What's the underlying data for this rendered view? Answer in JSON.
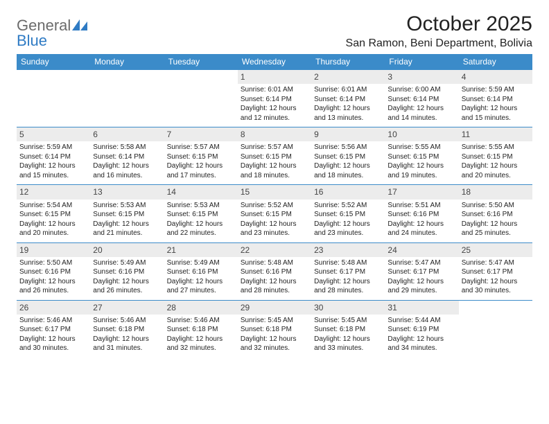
{
  "logo": {
    "text1": "General",
    "text2": "Blue",
    "color_gray": "#6b6b6b",
    "color_blue": "#2f7bc4"
  },
  "title": "October 2025",
  "location": "San Ramon, Beni Department, Bolivia",
  "colors": {
    "header_bg": "#3b8bc9",
    "header_text": "#ffffff",
    "week_border": "#3b8bc9",
    "daynum_bg": "#ececec",
    "page_bg": "#ffffff"
  },
  "fonts": {
    "title_size": 30,
    "location_size": 16,
    "header_size": 12,
    "daynum_size": 12,
    "detail_size": 10
  },
  "day_names": [
    "Sunday",
    "Monday",
    "Tuesday",
    "Wednesday",
    "Thursday",
    "Friday",
    "Saturday"
  ],
  "weeks": [
    [
      {
        "n": "",
        "sr": "",
        "ss": "",
        "dl": ""
      },
      {
        "n": "",
        "sr": "",
        "ss": "",
        "dl": ""
      },
      {
        "n": "",
        "sr": "",
        "ss": "",
        "dl": ""
      },
      {
        "n": "1",
        "sr": "Sunrise: 6:01 AM",
        "ss": "Sunset: 6:14 PM",
        "dl": "Daylight: 12 hours and 12 minutes."
      },
      {
        "n": "2",
        "sr": "Sunrise: 6:01 AM",
        "ss": "Sunset: 6:14 PM",
        "dl": "Daylight: 12 hours and 13 minutes."
      },
      {
        "n": "3",
        "sr": "Sunrise: 6:00 AM",
        "ss": "Sunset: 6:14 PM",
        "dl": "Daylight: 12 hours and 14 minutes."
      },
      {
        "n": "4",
        "sr": "Sunrise: 5:59 AM",
        "ss": "Sunset: 6:14 PM",
        "dl": "Daylight: 12 hours and 15 minutes."
      }
    ],
    [
      {
        "n": "5",
        "sr": "Sunrise: 5:59 AM",
        "ss": "Sunset: 6:14 PM",
        "dl": "Daylight: 12 hours and 15 minutes."
      },
      {
        "n": "6",
        "sr": "Sunrise: 5:58 AM",
        "ss": "Sunset: 6:14 PM",
        "dl": "Daylight: 12 hours and 16 minutes."
      },
      {
        "n": "7",
        "sr": "Sunrise: 5:57 AM",
        "ss": "Sunset: 6:15 PM",
        "dl": "Daylight: 12 hours and 17 minutes."
      },
      {
        "n": "8",
        "sr": "Sunrise: 5:57 AM",
        "ss": "Sunset: 6:15 PM",
        "dl": "Daylight: 12 hours and 18 minutes."
      },
      {
        "n": "9",
        "sr": "Sunrise: 5:56 AM",
        "ss": "Sunset: 6:15 PM",
        "dl": "Daylight: 12 hours and 18 minutes."
      },
      {
        "n": "10",
        "sr": "Sunrise: 5:55 AM",
        "ss": "Sunset: 6:15 PM",
        "dl": "Daylight: 12 hours and 19 minutes."
      },
      {
        "n": "11",
        "sr": "Sunrise: 5:55 AM",
        "ss": "Sunset: 6:15 PM",
        "dl": "Daylight: 12 hours and 20 minutes."
      }
    ],
    [
      {
        "n": "12",
        "sr": "Sunrise: 5:54 AM",
        "ss": "Sunset: 6:15 PM",
        "dl": "Daylight: 12 hours and 20 minutes."
      },
      {
        "n": "13",
        "sr": "Sunrise: 5:53 AM",
        "ss": "Sunset: 6:15 PM",
        "dl": "Daylight: 12 hours and 21 minutes."
      },
      {
        "n": "14",
        "sr": "Sunrise: 5:53 AM",
        "ss": "Sunset: 6:15 PM",
        "dl": "Daylight: 12 hours and 22 minutes."
      },
      {
        "n": "15",
        "sr": "Sunrise: 5:52 AM",
        "ss": "Sunset: 6:15 PM",
        "dl": "Daylight: 12 hours and 23 minutes."
      },
      {
        "n": "16",
        "sr": "Sunrise: 5:52 AM",
        "ss": "Sunset: 6:15 PM",
        "dl": "Daylight: 12 hours and 23 minutes."
      },
      {
        "n": "17",
        "sr": "Sunrise: 5:51 AM",
        "ss": "Sunset: 6:16 PM",
        "dl": "Daylight: 12 hours and 24 minutes."
      },
      {
        "n": "18",
        "sr": "Sunrise: 5:50 AM",
        "ss": "Sunset: 6:16 PM",
        "dl": "Daylight: 12 hours and 25 minutes."
      }
    ],
    [
      {
        "n": "19",
        "sr": "Sunrise: 5:50 AM",
        "ss": "Sunset: 6:16 PM",
        "dl": "Daylight: 12 hours and 26 minutes."
      },
      {
        "n": "20",
        "sr": "Sunrise: 5:49 AM",
        "ss": "Sunset: 6:16 PM",
        "dl": "Daylight: 12 hours and 26 minutes."
      },
      {
        "n": "21",
        "sr": "Sunrise: 5:49 AM",
        "ss": "Sunset: 6:16 PM",
        "dl": "Daylight: 12 hours and 27 minutes."
      },
      {
        "n": "22",
        "sr": "Sunrise: 5:48 AM",
        "ss": "Sunset: 6:16 PM",
        "dl": "Daylight: 12 hours and 28 minutes."
      },
      {
        "n": "23",
        "sr": "Sunrise: 5:48 AM",
        "ss": "Sunset: 6:17 PM",
        "dl": "Daylight: 12 hours and 28 minutes."
      },
      {
        "n": "24",
        "sr": "Sunrise: 5:47 AM",
        "ss": "Sunset: 6:17 PM",
        "dl": "Daylight: 12 hours and 29 minutes."
      },
      {
        "n": "25",
        "sr": "Sunrise: 5:47 AM",
        "ss": "Sunset: 6:17 PM",
        "dl": "Daylight: 12 hours and 30 minutes."
      }
    ],
    [
      {
        "n": "26",
        "sr": "Sunrise: 5:46 AM",
        "ss": "Sunset: 6:17 PM",
        "dl": "Daylight: 12 hours and 30 minutes."
      },
      {
        "n": "27",
        "sr": "Sunrise: 5:46 AM",
        "ss": "Sunset: 6:18 PM",
        "dl": "Daylight: 12 hours and 31 minutes."
      },
      {
        "n": "28",
        "sr": "Sunrise: 5:46 AM",
        "ss": "Sunset: 6:18 PM",
        "dl": "Daylight: 12 hours and 32 minutes."
      },
      {
        "n": "29",
        "sr": "Sunrise: 5:45 AM",
        "ss": "Sunset: 6:18 PM",
        "dl": "Daylight: 12 hours and 32 minutes."
      },
      {
        "n": "30",
        "sr": "Sunrise: 5:45 AM",
        "ss": "Sunset: 6:18 PM",
        "dl": "Daylight: 12 hours and 33 minutes."
      },
      {
        "n": "31",
        "sr": "Sunrise: 5:44 AM",
        "ss": "Sunset: 6:19 PM",
        "dl": "Daylight: 12 hours and 34 minutes."
      },
      {
        "n": "",
        "sr": "",
        "ss": "",
        "dl": ""
      }
    ]
  ]
}
